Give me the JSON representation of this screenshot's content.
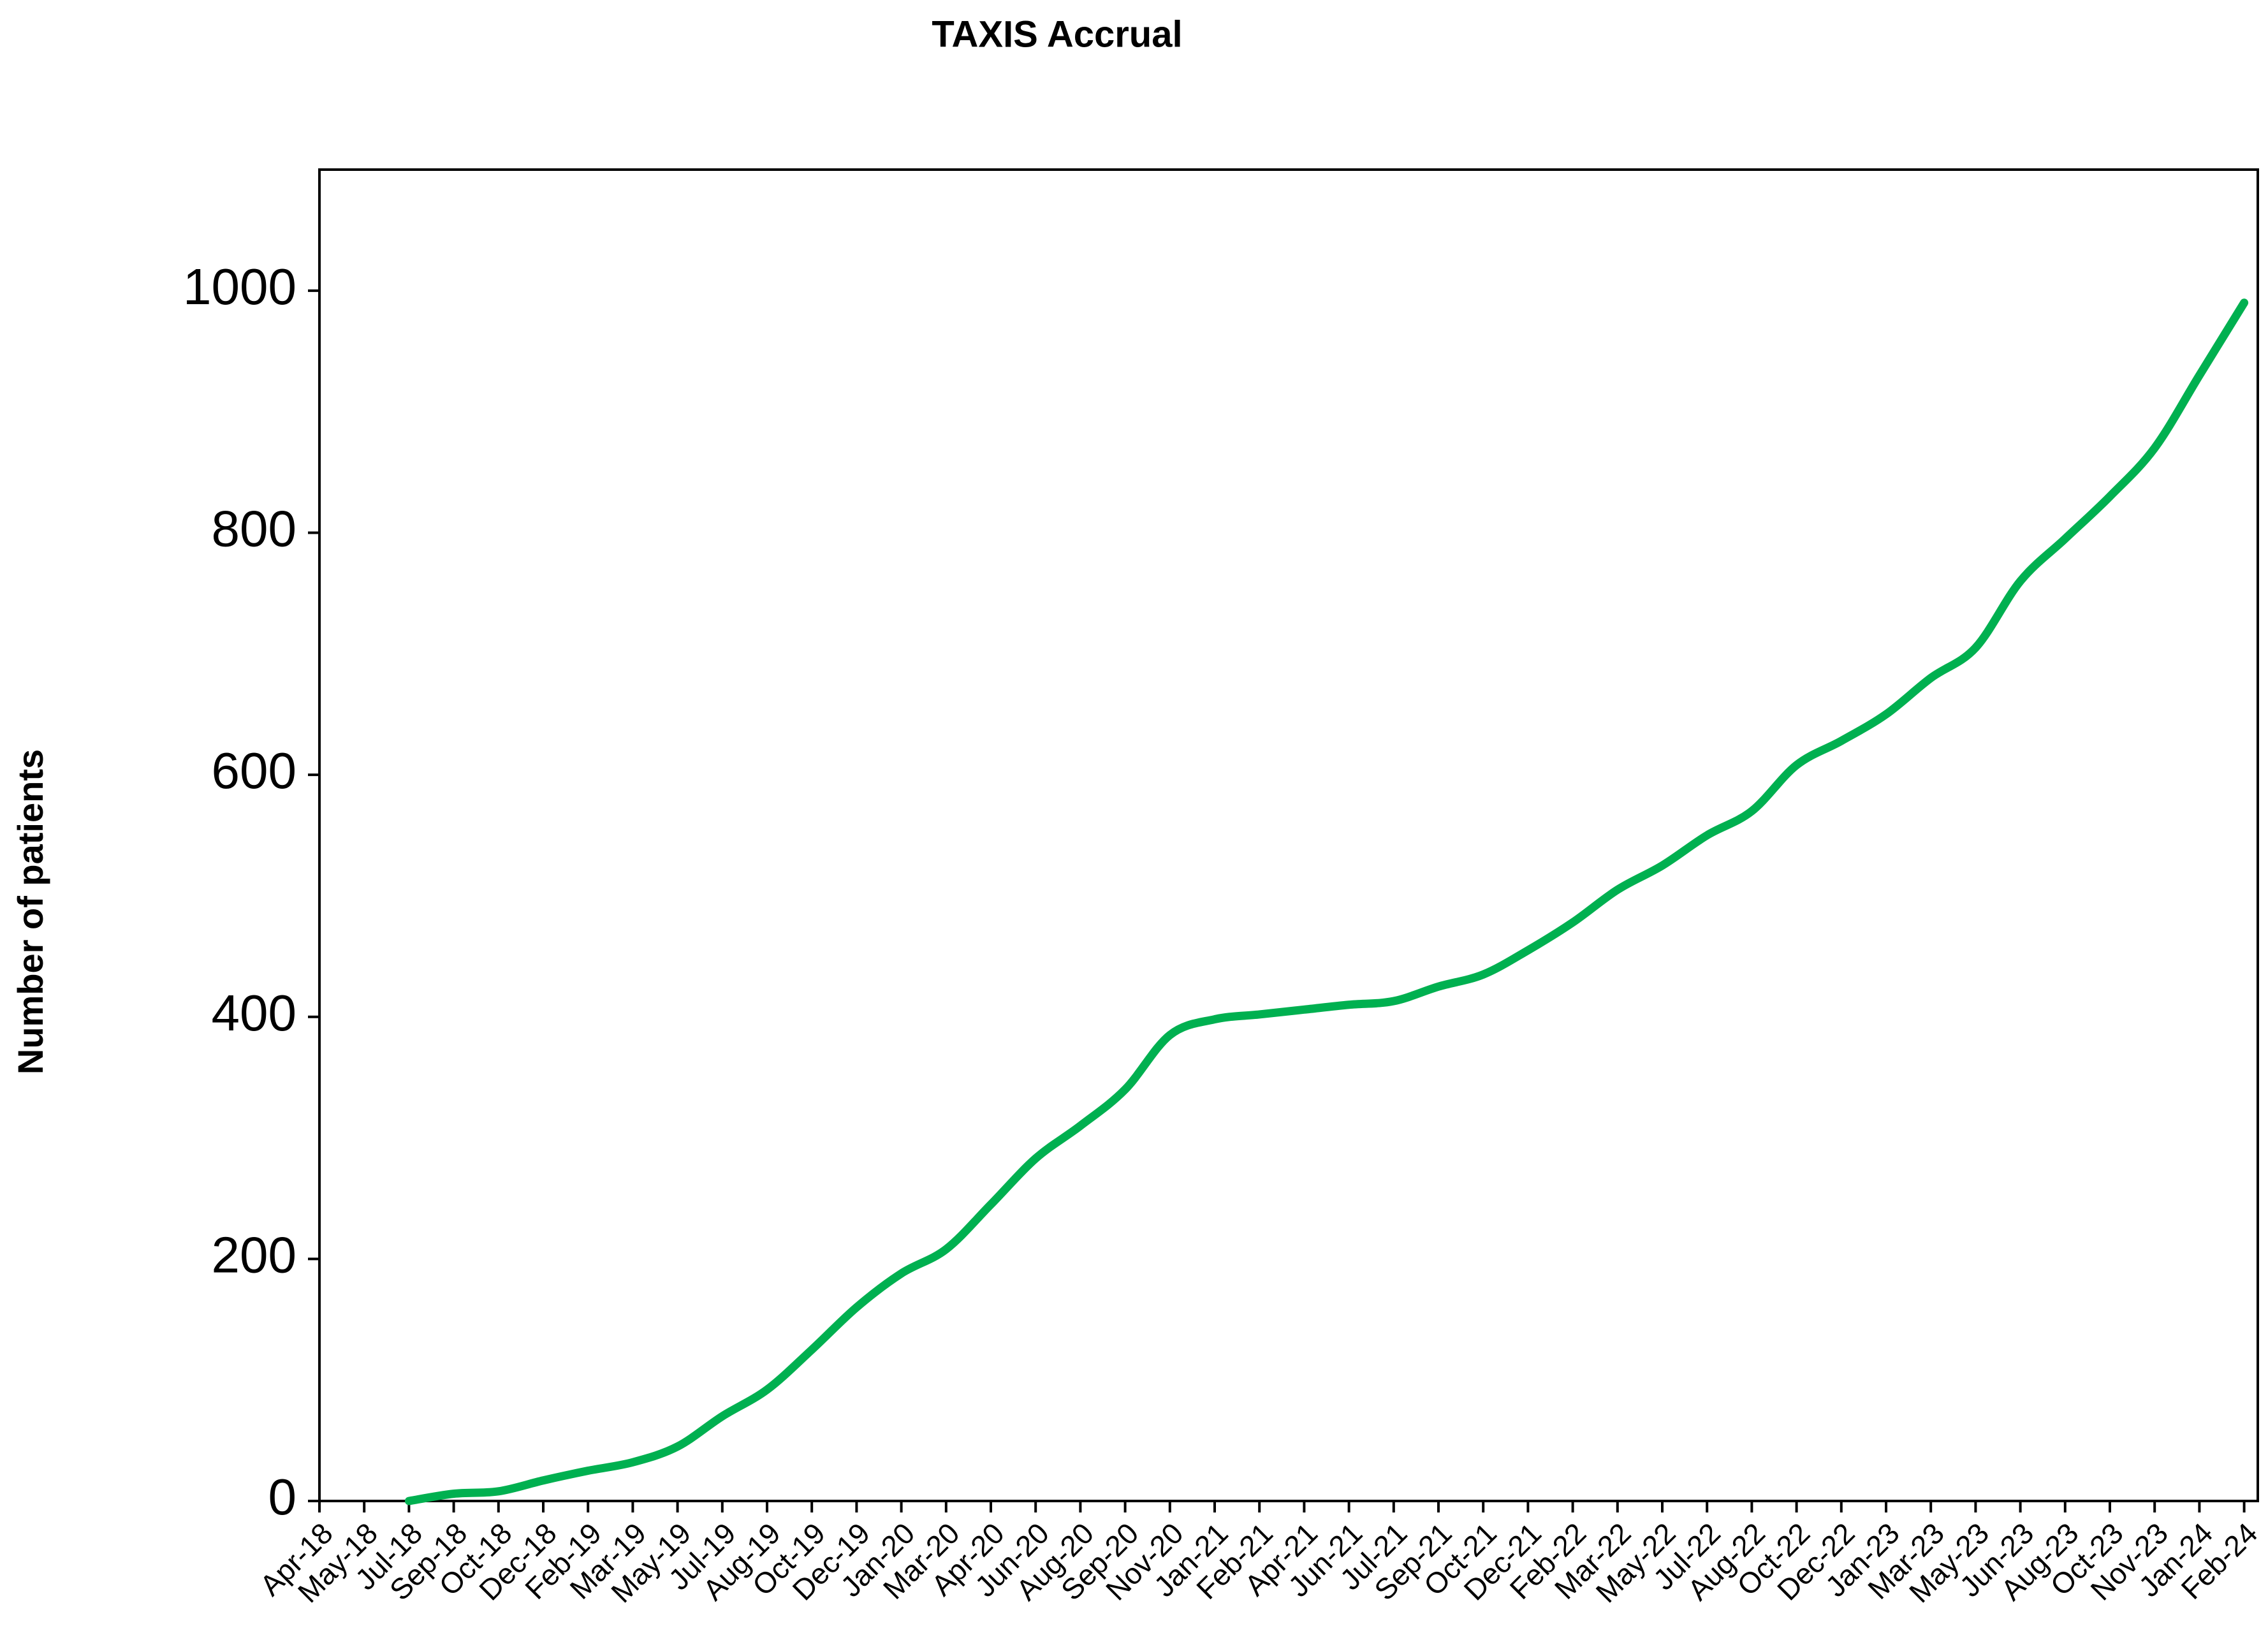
{
  "chart_data": {
    "type": "line",
    "title": "TAXIS Accrual",
    "y_label": "Number of patients",
    "categories": [
      "Apr-18",
      "May-18",
      "Jul-18",
      "Sep-18",
      "Oct-18",
      "Dec-18",
      "Feb-19",
      "Mar-19",
      "May-19",
      "Jul-19",
      "Aug-19",
      "Oct-19",
      "Dec-19",
      "Jan-20",
      "Mar-20",
      "Apr-20",
      "Jun-20",
      "Aug-20",
      "Sep-20",
      "Nov-20",
      "Jan-21",
      "Feb-21",
      "Apr-21",
      "Jun-21",
      "Jul-21",
      "Sep-21",
      "Oct-21",
      "Dec-21",
      "Feb-22",
      "Mar-22",
      "May-22",
      "Jul-22",
      "Aug-22",
      "Oct-22",
      "Dec-22",
      "Jan-23",
      "Mar-23",
      "May-23",
      "Jun-23",
      "Aug-23",
      "Oct-23",
      "Nov-23",
      "Jan-24",
      "Feb-24"
    ],
    "series": [
      {
        "name": "Accrual",
        "color": "#00b050",
        "values": [
          null,
          null,
          0,
          6,
          8,
          17,
          25,
          32,
          45,
          70,
          92,
          125,
          160,
          188,
          208,
          245,
          283,
          310,
          340,
          385,
          398,
          402,
          406,
          410,
          413,
          425,
          435,
          455,
          478,
          505,
          525,
          550,
          570,
          608,
          628,
          650,
          680,
          705,
          760,
          795,
          830,
          870,
          930,
          990
        ]
      }
    ],
    "ylim": [
      0,
      1100
    ],
    "yticks": [
      0,
      200,
      400,
      600,
      800,
      1000
    ],
    "grid": false,
    "legend": false
  }
}
